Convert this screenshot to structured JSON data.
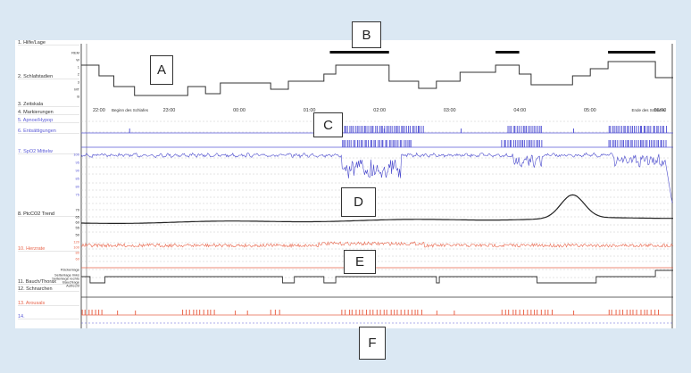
{
  "callouts": {
    "a": "A",
    "b": "B",
    "c": "C",
    "d": "D",
    "e": "E",
    "f": "F"
  },
  "chart_data": {
    "type": "line",
    "title": "",
    "x_ticks": [
      "22:00",
      "23:00",
      "00:00",
      "01:00",
      "02:00",
      "03:00",
      "04:00",
      "05:00",
      "06:00"
    ],
    "annotations": [
      "Beginn des Schlafes",
      "Ende des Schlafes"
    ],
    "channels": [
      {
        "label": "1. Hilfe/Lage",
        "color": "#333333"
      },
      {
        "label": "2. Schlafstadien",
        "color": "#333333",
        "scale_labels": [
          "REM",
          "W",
          "1",
          "2",
          "3",
          "MT",
          "B"
        ]
      },
      {
        "label": "3. Zeitskala",
        "color": "#333333"
      },
      {
        "label": "4. Markierungen",
        "color": "#333333"
      },
      {
        "label": "5. Apnoe/Hypop",
        "color": "#5a5ad6"
      },
      {
        "label": "6. Entsättigungen",
        "color": "#5a5ad6"
      },
      {
        "label": "7. SpO2 Mittelw",
        "color": "#5a5ad6",
        "scale_labels": [
          "100",
          "95",
          "90",
          "85",
          "80",
          "75"
        ]
      },
      {
        "label": "8. PtcCO2 Trend",
        "color": "#222222",
        "scale_labels": [
          "70",
          "65",
          "60",
          "55",
          "50"
        ]
      },
      {
        "label": "10. Herzrate",
        "color": "#e8644a",
        "scale_labels": [
          "120",
          "100",
          "80",
          "60"
        ]
      },
      {
        "label": "11. Bauch/Thorax",
        "color": "#333333",
        "scale_labels": [
          "Rückenlage",
          "Seitenlage links",
          "Seitenlage rechts",
          "Bauchlage",
          "Aufrecht"
        ]
      },
      {
        "label": "12. Schnarchen",
        "color": "#333333"
      },
      {
        "label": "13. Arousals",
        "color": "#e8644a"
      },
      {
        "label": "14.",
        "color": "#5a5ad6"
      }
    ]
  }
}
